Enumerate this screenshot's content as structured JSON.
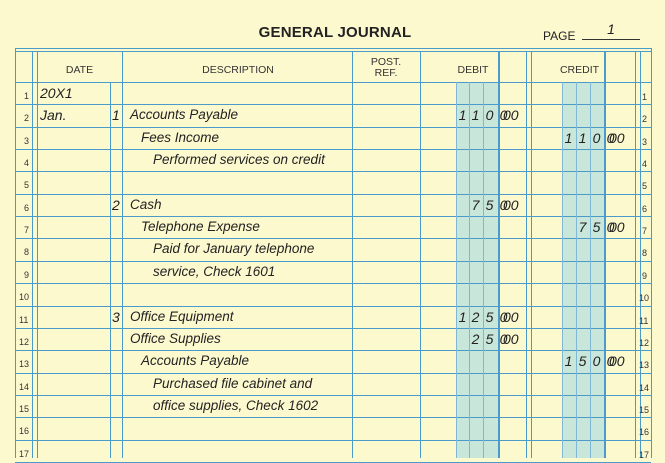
{
  "header": {
    "title": "GENERAL JOURNAL",
    "page_label": "PAGE",
    "page_number": "1"
  },
  "columns": {
    "date": "DATE",
    "description": "DESCRIPTION",
    "post_ref_1": "POST.",
    "post_ref_2": "REF.",
    "debit": "DEBIT",
    "credit": "CREDIT"
  },
  "line_numbers": [
    "1",
    "2",
    "3",
    "4",
    "5",
    "6",
    "7",
    "8",
    "9",
    "10",
    "11",
    "12",
    "13",
    "14",
    "15",
    "16",
    "17"
  ],
  "entries": [
    {
      "line": 1,
      "month": "20X1",
      "day": "",
      "description": "",
      "indent": 0,
      "debit": "",
      "credit": ""
    },
    {
      "line": 2,
      "month": "Jan.",
      "day": "1",
      "description": "Accounts Payable",
      "indent": 0,
      "debit": "1 1 0 0 00",
      "credit": ""
    },
    {
      "line": 3,
      "month": "",
      "day": "",
      "description": "Fees Income",
      "indent": 1,
      "debit": "",
      "credit": "1 1 0 0 00"
    },
    {
      "line": 4,
      "month": "",
      "day": "",
      "description": "Performed services on credit",
      "indent": 2,
      "debit": "",
      "credit": ""
    },
    {
      "line": 6,
      "month": "",
      "day": "2",
      "description": "Cash",
      "indent": 0,
      "debit": "7 5 0 00",
      "credit": ""
    },
    {
      "line": 7,
      "month": "",
      "day": "",
      "description": "Telephone Expense",
      "indent": 1,
      "debit": "",
      "credit": "7 5 0 00"
    },
    {
      "line": 8,
      "month": "",
      "day": "",
      "description": "Paid for January telephone",
      "indent": 2,
      "debit": "",
      "credit": ""
    },
    {
      "line": 9,
      "month": "",
      "day": "",
      "description": "service, Check 1601",
      "indent": 2,
      "debit": "",
      "credit": ""
    },
    {
      "line": 11,
      "month": "",
      "day": "3",
      "description": "Office Equipment",
      "indent": 0,
      "debit": "1 2 5 0 00",
      "credit": ""
    },
    {
      "line": 12,
      "month": "",
      "day": "",
      "description": "Office Supplies",
      "indent": 0,
      "debit": "2 5 0 00",
      "credit": ""
    },
    {
      "line": 13,
      "month": "",
      "day": "",
      "description": "Accounts Payable",
      "indent": 1,
      "debit": "",
      "credit": "1 5 0 0 00"
    },
    {
      "line": 14,
      "month": "",
      "day": "",
      "description": "Purchased file cabinet and",
      "indent": 2,
      "debit": "",
      "credit": ""
    },
    {
      "line": 15,
      "month": "",
      "day": "",
      "description": "office supplies, Check 1602",
      "indent": 2,
      "debit": "",
      "credit": ""
    }
  ]
}
